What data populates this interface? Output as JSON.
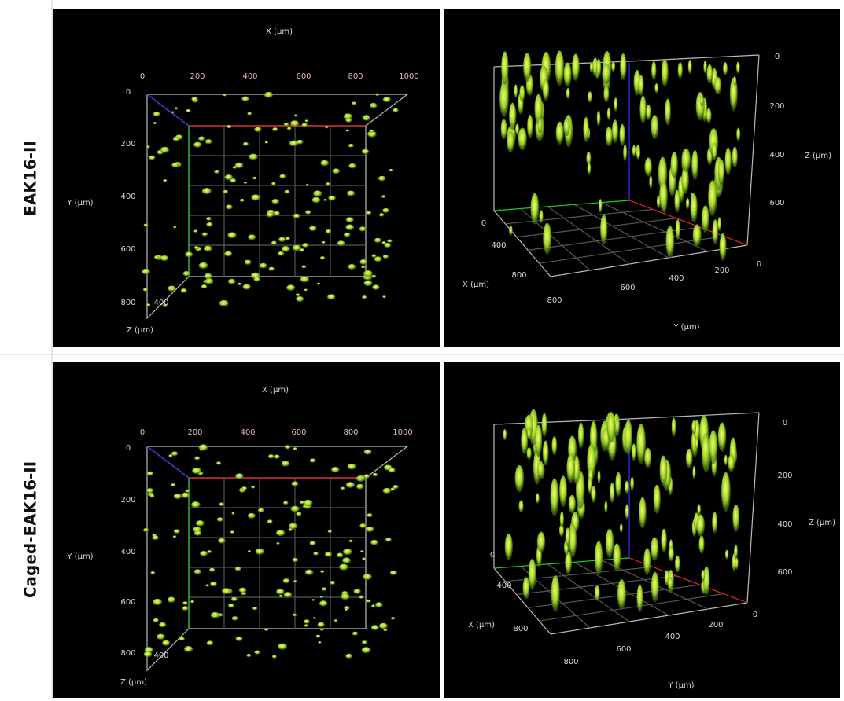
{
  "rows": [
    {
      "label": "EAK16-II",
      "top_view": {
        "x_axis_title": "X (µm)",
        "x_ticks": [
          "0",
          "200",
          "400",
          "600",
          "800",
          "1000"
        ],
        "y_axis_title": "Y (µm)",
        "y_ticks": [
          "0",
          "200",
          "400",
          "600",
          "800"
        ],
        "z_axis_title": "Z (µm)",
        "z_tick": "400"
      },
      "side_view": {
        "z_axis_title": "Z (µm)",
        "z_ticks": [
          "0",
          "200",
          "400",
          "600"
        ],
        "x_axis_title": "X (µm)",
        "x_ticks": [
          "0",
          "400",
          "800"
        ],
        "y_axis_title": "Y (µm)",
        "y_ticks": [
          "800",
          "600",
          "400",
          "200",
          "0"
        ]
      }
    },
    {
      "label": "Caged-EAK16-II",
      "top_view": {
        "x_axis_title": "X (µm)",
        "x_ticks": [
          "0",
          "200",
          "400",
          "600",
          "800",
          "1000"
        ],
        "y_axis_title": "Y (µm)",
        "y_ticks": [
          "0",
          "200",
          "400",
          "600",
          "800"
        ],
        "z_axis_title": "Z (µm)",
        "z_tick": "400"
      },
      "side_view": {
        "z_axis_title": "Z (µm)",
        "z_ticks": [
          "0",
          "200",
          "400",
          "600"
        ],
        "x_axis_title": "X (µm)",
        "x_ticks": [
          "0",
          "400",
          "800"
        ],
        "y_axis_title": "Y (µm)",
        "y_ticks": [
          "800",
          "600",
          "400",
          "200",
          "0"
        ]
      }
    }
  ]
}
